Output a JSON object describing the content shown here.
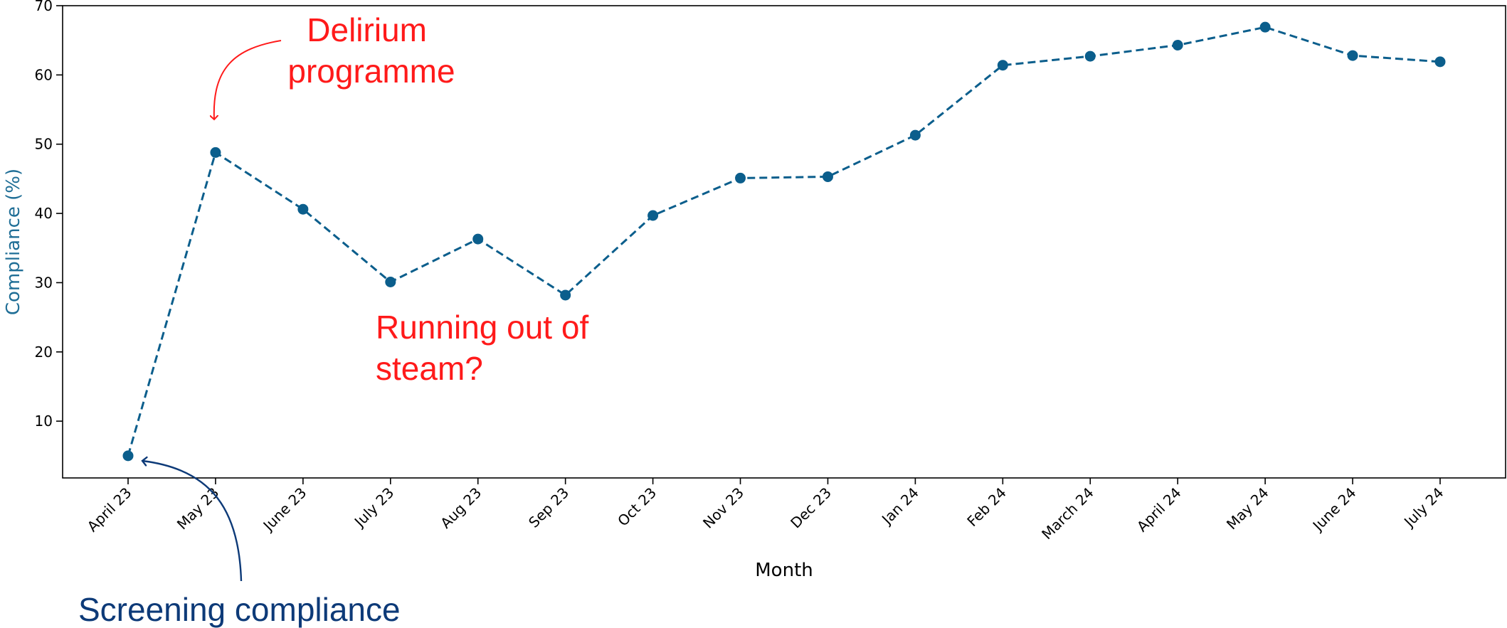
{
  "chart_data": {
    "type": "line",
    "xlabel": "Month",
    "ylabel": "Compliance (%)",
    "categories": [
      "April 23",
      "May 23",
      "June 23",
      "July 23",
      "Aug 23",
      "Sep 23",
      "Oct 23",
      "Nov 23",
      "Dec 23",
      "Jan 24",
      "Feb 24",
      "March 24",
      "April 24",
      "May 24",
      "June 24",
      "July 24"
    ],
    "series": [
      {
        "values": [
          5.0,
          48.8,
          40.6,
          30.1,
          36.3,
          28.2,
          39.7,
          45.1,
          45.3,
          51.3,
          61.4,
          62.7,
          64.3,
          66.9,
          62.8,
          61.9
        ]
      }
    ],
    "ylim": [
      1.8,
      70
    ],
    "yticks": [
      10,
      20,
      30,
      40,
      50,
      60,
      70
    ],
    "grid": false,
    "line_style": "dashed",
    "colors": {
      "series": "#0b5e8c",
      "ylabel": "#1f6e96",
      "annotation_red": "#ff1a1a",
      "annotation_blue": "#0d3a78"
    },
    "annotations": [
      {
        "name": "delirium",
        "lines": [
          "Delirium",
          "programme"
        ],
        "color": "red",
        "points_to": "May 23"
      },
      {
        "name": "steam",
        "lines": [
          "Running out of",
          "steam?"
        ],
        "color": "red"
      },
      {
        "name": "screening",
        "lines": [
          "Screening compliance"
        ],
        "color": "blue",
        "points_to": "April 23"
      }
    ]
  }
}
